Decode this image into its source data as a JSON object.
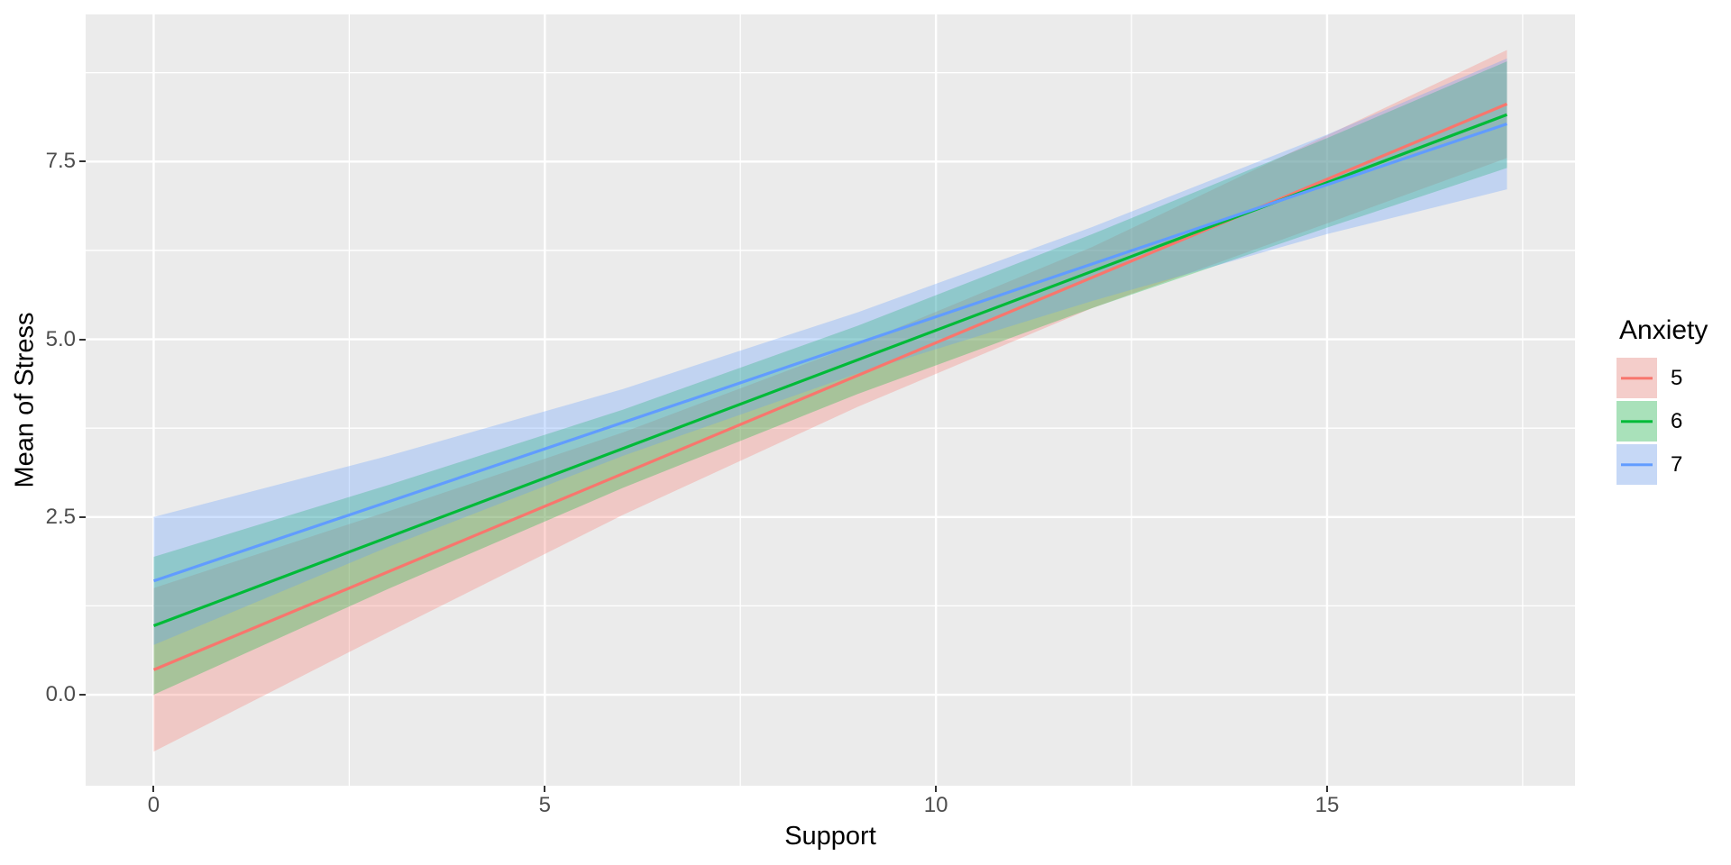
{
  "chart_data": {
    "type": "line",
    "subtype": "regression_lines_with_confidence_bands",
    "title": "",
    "xlabel": "Support",
    "ylabel": "Mean of Stress",
    "legend": {
      "title": "Anxiety",
      "position": "right"
    },
    "grid": true,
    "panel_bg": "#EBEBEB",
    "grid_color": "#FFFFFF",
    "tick_mark_color": "#333333",
    "tick_label_color": "#4D4D4D",
    "axis_title_color": "#000000",
    "x_domain": [
      -0.87,
      18.17
    ],
    "y_domain": [
      -1.28,
      9.57
    ],
    "xlim_data": [
      0,
      17.3
    ],
    "ylim_data": [
      -0.8,
      9.07
    ],
    "x_major_ticks": [
      {
        "value": 0,
        "label": "0"
      },
      {
        "value": 5,
        "label": "5"
      },
      {
        "value": 10,
        "label": "10"
      },
      {
        "value": 15,
        "label": "15"
      }
    ],
    "y_major_ticks": [
      {
        "value": 0,
        "label": "0.0"
      },
      {
        "value": 2.5,
        "label": "2.5"
      },
      {
        "value": 5,
        "label": "5.0"
      },
      {
        "value": 7.5,
        "label": "7.5"
      }
    ],
    "x_minor_ticks": [
      2.5,
      7.5,
      12.5,
      17.5
    ],
    "y_minor_ticks": [
      1.25,
      3.75,
      6.25,
      8.75
    ],
    "series": [
      {
        "name": "5",
        "color": "#F8766D",
        "fill": "rgba(248,118,109,0.3)",
        "line": [
          {
            "x": 0,
            "y": 0.35
          },
          {
            "x": 17.3,
            "y": 8.31
          }
        ],
        "ribbon": [
          {
            "x": 0,
            "lo": -0.8,
            "hi": 1.5
          },
          {
            "x": 3,
            "lo": 0.88,
            "hi": 2.58
          },
          {
            "x": 6,
            "lo": 2.53,
            "hi": 3.69
          },
          {
            "x": 9,
            "lo": 4.05,
            "hi": 4.93
          },
          {
            "x": 12,
            "lo": 5.44,
            "hi": 6.3
          },
          {
            "x": 15,
            "lo": 6.63,
            "hi": 7.87
          },
          {
            "x": 17.3,
            "lo": 7.55,
            "hi": 9.07
          }
        ]
      },
      {
        "name": "6",
        "color": "#00BA38",
        "fill": "rgba(0,186,56,0.3)",
        "line": [
          {
            "x": 0,
            "y": 0.97
          },
          {
            "x": 17.3,
            "y": 8.16
          }
        ],
        "ribbon": [
          {
            "x": 0,
            "lo": 0.0,
            "hi": 1.94
          },
          {
            "x": 3,
            "lo": 1.49,
            "hi": 2.95
          },
          {
            "x": 6,
            "lo": 2.91,
            "hi": 4.01
          },
          {
            "x": 9,
            "lo": 4.23,
            "hi": 5.19
          },
          {
            "x": 12,
            "lo": 5.44,
            "hi": 6.48
          },
          {
            "x": 15,
            "lo": 6.57,
            "hi": 7.83
          },
          {
            "x": 17.3,
            "lo": 7.41,
            "hi": 8.91
          }
        ]
      },
      {
        "name": "7",
        "color": "#619CFF",
        "fill": "rgba(97,156,255,0.3)",
        "line": [
          {
            "x": 0,
            "y": 1.6
          },
          {
            "x": 17.3,
            "y": 8.03
          }
        ],
        "ribbon": [
          {
            "x": 0,
            "lo": 0.7,
            "hi": 2.5
          },
          {
            "x": 3,
            "lo": 2.08,
            "hi": 3.36
          },
          {
            "x": 6,
            "lo": 3.36,
            "hi": 4.3
          },
          {
            "x": 9,
            "lo": 4.52,
            "hi": 5.38
          },
          {
            "x": 12,
            "lo": 5.54,
            "hi": 6.58
          },
          {
            "x": 15,
            "lo": 6.48,
            "hi": 7.88
          },
          {
            "x": 17.3,
            "lo": 7.11,
            "hi": 8.95
          }
        ]
      }
    ]
  }
}
